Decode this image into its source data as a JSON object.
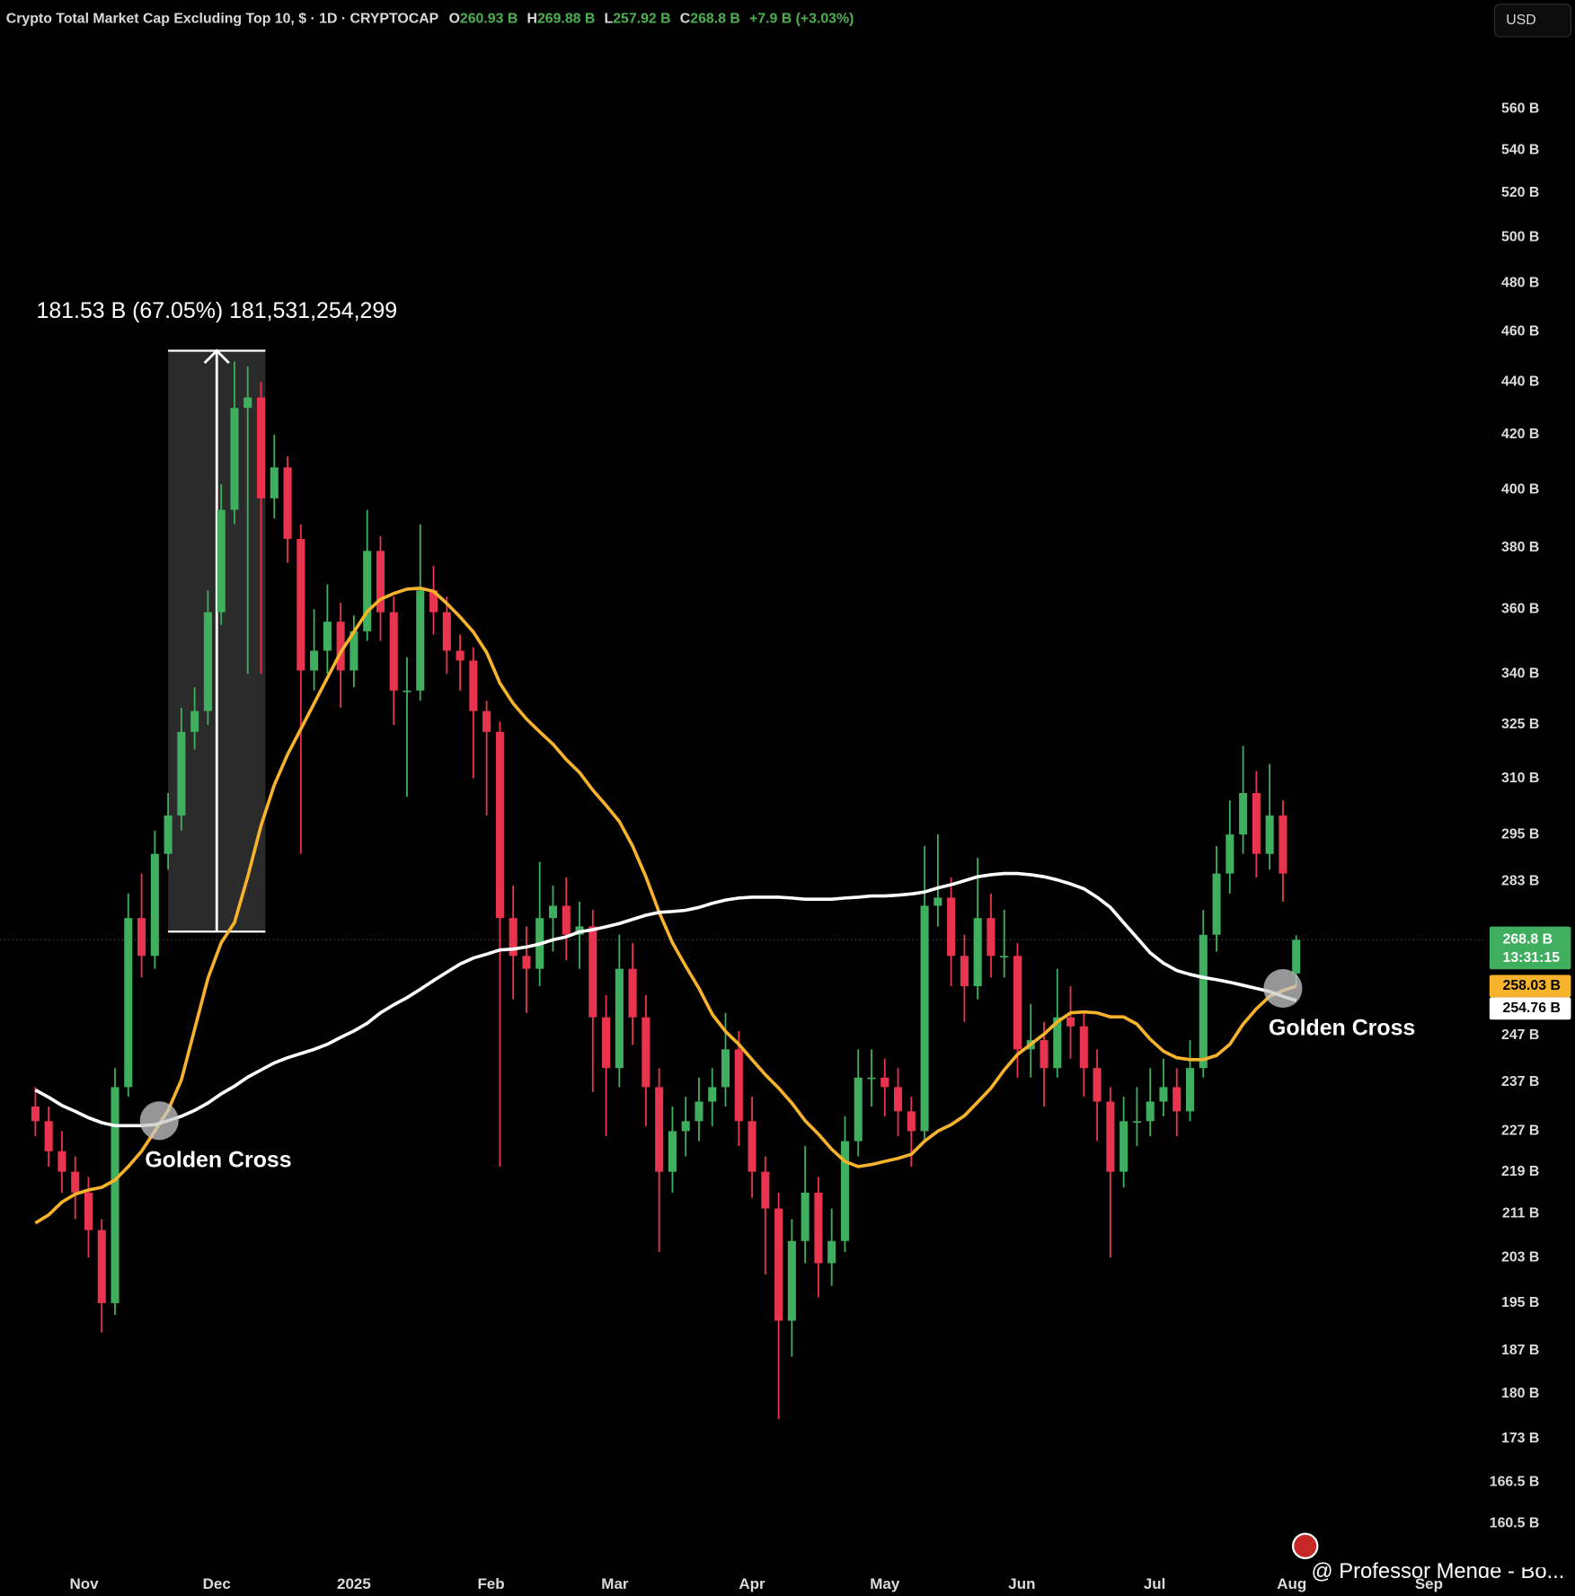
{
  "chart_data": {
    "type": "candlestick",
    "title": "Crypto Total Market Cap Excluding Top 10, $ · 1D · CRYPTOCAP",
    "last": {
      "names": [
        "O",
        "H",
        "L",
        "C"
      ],
      "values": [
        260.93,
        269.88,
        257.92,
        268.8
      ],
      "value_labels": [
        "260.93 B",
        "269.88 B",
        "257.92 B",
        "268.8 B"
      ],
      "change": "+7.9 B (+3.03%)",
      "countdown": "13:31:15"
    },
    "currency": "USD",
    "up_color": "#3fae5e",
    "down_color": "#e8344e",
    "log": true,
    "grid": false,
    "x": [
      "2024-10-21",
      "2024-10-24",
      "2024-10-27",
      "2024-10-30",
      "2024-11-02",
      "2024-11-05",
      "2024-11-08",
      "2024-11-11",
      "2024-11-14",
      "2024-11-17",
      "2024-11-20",
      "2024-11-23",
      "2024-11-26",
      "2024-11-29",
      "2024-12-02",
      "2024-12-05",
      "2024-12-08",
      "2024-12-11",
      "2024-12-14",
      "2024-12-17",
      "2024-12-20",
      "2024-12-23",
      "2024-12-26",
      "2024-12-29",
      "2025-01-01",
      "2025-01-04",
      "2025-01-07",
      "2025-01-10",
      "2025-01-13",
      "2025-01-16",
      "2025-01-19",
      "2025-01-22",
      "2025-01-25",
      "2025-01-28",
      "2025-01-31",
      "2025-02-03",
      "2025-02-06",
      "2025-02-09",
      "2025-02-12",
      "2025-02-15",
      "2025-02-18",
      "2025-02-21",
      "2025-02-24",
      "2025-02-27",
      "2025-03-02",
      "2025-03-05",
      "2025-03-08",
      "2025-03-11",
      "2025-03-14",
      "2025-03-17",
      "2025-03-20",
      "2025-03-23",
      "2025-03-26",
      "2025-03-29",
      "2025-04-01",
      "2025-04-04",
      "2025-04-07",
      "2025-04-10",
      "2025-04-13",
      "2025-04-16",
      "2025-04-19",
      "2025-04-22",
      "2025-04-25",
      "2025-04-28",
      "2025-05-01",
      "2025-05-04",
      "2025-05-07",
      "2025-05-10",
      "2025-05-13",
      "2025-05-16",
      "2025-05-19",
      "2025-05-22",
      "2025-05-25",
      "2025-05-28",
      "2025-05-31",
      "2025-06-03",
      "2025-06-06",
      "2025-06-09",
      "2025-06-12",
      "2025-06-15",
      "2025-06-18",
      "2025-06-21",
      "2025-06-24",
      "2025-06-27",
      "2025-06-30",
      "2025-07-03",
      "2025-07-06",
      "2025-07-09",
      "2025-07-12",
      "2025-07-15",
      "2025-07-18",
      "2025-07-21",
      "2025-07-24",
      "2025-07-27",
      "2025-07-30",
      "2025-08-02"
    ],
    "open": [
      232,
      229,
      223,
      219,
      215,
      208,
      195,
      236,
      274,
      265,
      290,
      300,
      323,
      329,
      359,
      393,
      430,
      434,
      397,
      408,
      383,
      341,
      347,
      356,
      341,
      353,
      379,
      359,
      335,
      335,
      366,
      359,
      347,
      344,
      329,
      323,
      274,
      265,
      262,
      274,
      277,
      270,
      272,
      251,
      240,
      262,
      251,
      236,
      219,
      227,
      229,
      233,
      236,
      244,
      229,
      219,
      212,
      192,
      206,
      215,
      202,
      206,
      225,
      238,
      238,
      236,
      231,
      227,
      277,
      279,
      265,
      258,
      274,
      265,
      265,
      244,
      246,
      240,
      251,
      249,
      240,
      233,
      219,
      229,
      229,
      233,
      236,
      231,
      240,
      270,
      285,
      295,
      306,
      290,
      300,
      260.93
    ],
    "high": [
      236,
      232,
      227,
      222,
      218,
      210,
      240,
      280,
      285,
      296,
      306,
      330,
      336,
      366,
      402,
      448,
      446,
      440,
      420,
      412,
      388,
      360,
      368,
      362,
      358,
      393,
      384,
      364,
      345,
      388,
      374,
      364,
      352,
      348,
      332,
      326,
      282,
      272,
      288,
      282,
      284,
      278,
      276,
      256,
      270,
      268,
      256,
      240,
      232,
      234,
      238,
      240,
      252,
      248,
      234,
      222,
      215,
      210,
      224,
      218,
      212,
      230,
      244,
      244,
      242,
      240,
      234,
      292,
      295,
      284,
      270,
      289,
      280,
      276,
      268,
      254,
      250,
      262,
      258,
      252,
      244,
      236,
      234,
      236,
      240,
      242,
      240,
      246,
      276,
      292,
      304,
      319,
      312,
      314,
      304,
      269.88
    ],
    "low": [
      226,
      220,
      215,
      210,
      203,
      190,
      193,
      234,
      260,
      262,
      286,
      296,
      318,
      325,
      355,
      388,
      340,
      340,
      390,
      375,
      290,
      335,
      340,
      330,
      336,
      350,
      350,
      325,
      305,
      332,
      352,
      340,
      335,
      310,
      300,
      220,
      255,
      252,
      258,
      266,
      264,
      262,
      235,
      226,
      236,
      245,
      228,
      204,
      215,
      222,
      225,
      228,
      232,
      224,
      214,
      200,
      176,
      186,
      202,
      196,
      198,
      204,
      222,
      232,
      230,
      226,
      220,
      225,
      272,
      258,
      250,
      255,
      260,
      260,
      238,
      238,
      232,
      238,
      242,
      234,
      225,
      203,
      216,
      224,
      226,
      230,
      226,
      229,
      238,
      266,
      280,
      290,
      284,
      286,
      278,
      257.92
    ],
    "close": [
      229,
      223,
      219,
      215,
      208,
      195,
      236,
      274,
      265,
      290,
      300,
      323,
      329,
      359,
      393,
      430,
      434,
      397,
      408,
      383,
      341,
      347,
      356,
      341,
      353,
      379,
      359,
      335,
      335,
      366,
      359,
      347,
      344,
      329,
      323,
      274,
      265,
      262,
      274,
      277,
      270,
      272,
      251,
      240,
      262,
      251,
      236,
      219,
      227,
      229,
      233,
      236,
      244,
      229,
      219,
      212,
      192,
      206,
      215,
      202,
      206,
      225,
      238,
      238,
      236,
      231,
      227,
      277,
      279,
      265,
      258,
      274,
      265,
      265,
      244,
      246,
      240,
      251,
      249,
      240,
      233,
      219,
      229,
      229,
      233,
      236,
      231,
      240,
      270,
      285,
      295,
      306,
      290,
      300,
      285,
      268.8
    ],
    "series": [
      {
        "color": "#f7b32b",
        "last_label": "258.03 B",
        "values": [
          209.3,
          210.8,
          213.2,
          214.7,
          215.5,
          216.0,
          217.4,
          220.0,
          223.0,
          227.0,
          231.2,
          237.5,
          248.4,
          259.8,
          268.1,
          272.9,
          284.2,
          297.3,
          308.2,
          316.6,
          323.8,
          331.2,
          338.8,
          346.5,
          352.8,
          359.2,
          363.1,
          365.0,
          366.4,
          366.7,
          365.7,
          361.8,
          357.5,
          352.8,
          346.5,
          337.2,
          331.2,
          326.7,
          323.0,
          319.5,
          315.2,
          311.6,
          306.8,
          302.7,
          298.4,
          292.0,
          284.2,
          275.4,
          268.1,
          262.6,
          257.5,
          251.7,
          247.9,
          245.1,
          241.8,
          238.6,
          235.8,
          232.7,
          229.1,
          226.4,
          223.4,
          221.0,
          220.0,
          220.4,
          221.0,
          221.6,
          222.4,
          225.0,
          227.0,
          228.3,
          230.1,
          232.9,
          235.8,
          239.6,
          242.9,
          245.1,
          247.3,
          250.0,
          252.0,
          252.2,
          252.0,
          251.1,
          251.1,
          249.5,
          246.2,
          243.6,
          242.2,
          241.8,
          241.8,
          242.7,
          245.1,
          249.5,
          252.9,
          255.7,
          257.0,
          258.03
        ]
      },
      {
        "color": "#ffffff",
        "last_label": "254.76 B",
        "values": [
          235.4,
          233.9,
          232.2,
          231.0,
          229.7,
          228.7,
          228.1,
          228.1,
          228.1,
          228.3,
          229.1,
          230.0,
          231.2,
          232.7,
          234.6,
          236.2,
          238.1,
          239.6,
          241.1,
          242.2,
          243.1,
          244.0,
          245.1,
          246.6,
          248.0,
          249.7,
          252.0,
          253.8,
          255.4,
          257.3,
          259.3,
          261.2,
          263.1,
          264.5,
          265.4,
          266.4,
          266.6,
          267.1,
          267.8,
          268.8,
          269.5,
          270.7,
          271.2,
          271.9,
          272.7,
          273.7,
          274.7,
          275.4,
          275.6,
          275.9,
          276.6,
          277.6,
          278.4,
          278.9,
          279.1,
          279.1,
          279.1,
          278.9,
          278.6,
          278.6,
          278.6,
          278.9,
          279.1,
          279.4,
          279.4,
          279.6,
          279.9,
          280.4,
          281.4,
          282.2,
          283.2,
          284.2,
          284.7,
          285.0,
          285.0,
          284.7,
          284.2,
          283.4,
          282.4,
          281.2,
          279.1,
          276.6,
          272.9,
          269.3,
          265.7,
          263.3,
          261.6,
          260.7,
          260.0,
          259.5,
          258.9,
          258.2,
          257.5,
          256.8,
          255.7,
          254.76
        ]
      }
    ],
    "xlim": [
      "2024-10-13",
      "2025-09-14"
    ],
    "xticks": [
      {
        "value": "2024-11-01",
        "label": "Nov"
      },
      {
        "value": "2024-12-01",
        "label": "Dec"
      },
      {
        "value": "2025-01-01",
        "label": "2025"
      },
      {
        "value": "2025-02-01",
        "label": "Feb"
      },
      {
        "value": "2025-03-01",
        "label": "Mar"
      },
      {
        "value": "2025-04-01",
        "label": "Apr"
      },
      {
        "value": "2025-05-01",
        "label": "May"
      },
      {
        "value": "2025-06-01",
        "label": "Jun"
      },
      {
        "value": "2025-07-01",
        "label": "Jul"
      },
      {
        "value": "2025-08-01",
        "label": "Aug"
      },
      {
        "value": "2025-09-01",
        "label": "Sep"
      }
    ],
    "ylim": [
      154.4,
      616.5
    ],
    "yticks": [
      {
        "value": 560,
        "label": "560 B"
      },
      {
        "value": 540,
        "label": "540 B"
      },
      {
        "value": 520,
        "label": "520 B"
      },
      {
        "value": 500,
        "label": "500 B"
      },
      {
        "value": 480,
        "label": "480 B"
      },
      {
        "value": 460,
        "label": "460 B"
      },
      {
        "value": 440,
        "label": "440 B"
      },
      {
        "value": 420,
        "label": "420 B"
      },
      {
        "value": 400,
        "label": "400 B"
      },
      {
        "value": 380,
        "label": "380 B"
      },
      {
        "value": 360,
        "label": "360 B"
      },
      {
        "value": 340,
        "label": "340 B"
      },
      {
        "value": 325,
        "label": "325 B"
      },
      {
        "value": 310,
        "label": "310 B"
      },
      {
        "value": 295,
        "label": "295 B"
      },
      {
        "value": 283,
        "label": "283 B"
      },
      {
        "value": 247,
        "label": "247 B"
      },
      {
        "value": 237,
        "label": "237 B"
      },
      {
        "value": 227,
        "label": "227 B"
      },
      {
        "value": 219,
        "label": "219 B"
      },
      {
        "value": 211,
        "label": "211 B"
      },
      {
        "value": 203,
        "label": "203 B"
      },
      {
        "value": 195,
        "label": "195 B"
      },
      {
        "value": 187,
        "label": "187 B"
      },
      {
        "value": 180,
        "label": "180 B"
      },
      {
        "value": 173,
        "label": "173 B"
      },
      {
        "value": 166.5,
        "label": "166.5 B"
      },
      {
        "value": 160.5,
        "label": "160.5 B"
      }
    ],
    "measure": {
      "label": "181.53 B (67.05%) 181,531,254,299",
      "from": 270.74,
      "to": 452.27,
      "start": "2024-11-20",
      "end": "2024-12-12"
    },
    "annotations": [
      {
        "text": "Golden Cross",
        "x": "2024-11-18",
        "y": 229.1
      },
      {
        "text": "Golden Cross",
        "x": "2025-07-30",
        "y": 257.5
      }
    ],
    "watermark": "@ Professor Mende - Bo..."
  }
}
